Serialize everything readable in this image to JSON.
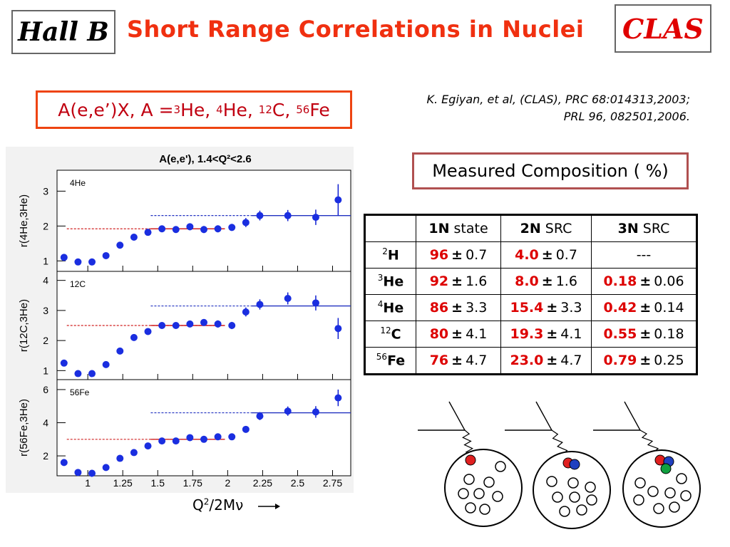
{
  "header": {
    "hall_label": "Hall B",
    "title": "Short Range Correlations in Nuclei",
    "clas_label": "CLAS"
  },
  "reaction": {
    "prefix": "A(e,e’)X, A = ",
    "nuclei": [
      {
        "mass": "3",
        "symbol": "He"
      },
      {
        "mass": "4",
        "symbol": "He"
      },
      {
        "mass": "12",
        "symbol": "C"
      },
      {
        "mass": "56",
        "symbol": "Fe"
      }
    ]
  },
  "references": {
    "line1": "K. Egiyan, et al, (CLAS), PRC 68:014313,2003;",
    "line2": "PRL 96, 082501,2006."
  },
  "composition_title": "Measured Composition ( %)",
  "table": {
    "headers": [
      {
        "bold": "",
        "rest": ""
      },
      {
        "bold": "1N",
        "rest": " state"
      },
      {
        "bold": "2N",
        "rest": " SRC"
      },
      {
        "bold": "3N",
        "rest": " SRC"
      }
    ],
    "rows": [
      {
        "mass": "2",
        "symbol": "H",
        "n1": "96",
        "n1err": "0.7",
        "n2": "4.0",
        "n2err": "0.7",
        "n3": "---",
        "n3err": ""
      },
      {
        "mass": "3",
        "symbol": "He",
        "n1": "92",
        "n1err": "1.6",
        "n2": "8.0",
        "n2err": "1.6",
        "n3": "0.18",
        "n3err": "0.06"
      },
      {
        "mass": "4",
        "symbol": "He",
        "n1": "86",
        "n1err": "3.3",
        "n2": "15.4",
        "n2err": "3.3",
        "n3": "0.42",
        "n3err": "0.14"
      },
      {
        "mass": "12",
        "symbol": "C",
        "n1": "80",
        "n1err": "4.1",
        "n2": "19.3",
        "n2err": "4.1",
        "n3": "0.55",
        "n3err": "0.18"
      },
      {
        "mass": "56",
        "symbol": "Fe",
        "n1": "76",
        "n1err": "4.7",
        "n2": "23.0",
        "n2err": "4.7",
        "n3": "0.79",
        "n3err": "0.25"
      }
    ],
    "pm": "±"
  },
  "xaxis_label": {
    "main": "Q",
    "sup": "2",
    "rest": "/2Mν"
  },
  "chart_data": {
    "type": "scatter",
    "title": "A(e,e'), 1.4<Q²<2.6",
    "x": [
      0.83,
      0.93,
      1.03,
      1.13,
      1.23,
      1.33,
      1.43,
      1.53,
      1.63,
      1.73,
      1.83,
      1.93,
      2.03,
      2.13,
      2.23,
      2.43,
      2.63,
      2.79
    ],
    "xticks": [
      "1",
      "1.25",
      "1.5",
      "1.75",
      "2",
      "2.25",
      "2.5",
      "2.75"
    ],
    "xlim": [
      0.78,
      2.88
    ],
    "panels": [
      {
        "label": "4He",
        "ylabel": "r(4He,3He)",
        "ylim": [
          0.7,
          3.6
        ],
        "yticks": [
          1,
          2,
          3
        ],
        "y": [
          1.1,
          0.97,
          0.97,
          1.15,
          1.45,
          1.68,
          1.82,
          1.92,
          1.9,
          1.98,
          1.9,
          1.92,
          1.96,
          2.1,
          2.3,
          2.3,
          2.25,
          2.75
        ],
        "err": [
          0.03,
          0.04,
          0.05,
          0.06,
          0.06,
          0.07,
          0.08,
          0.09,
          0.09,
          0.1,
          0.1,
          0.1,
          0.1,
          0.13,
          0.14,
          0.16,
          0.22,
          0.45
        ],
        "red_line": {
          "x": [
            0.85,
            1.98
          ],
          "y": 1.92
        },
        "blue_line": {
          "x": [
            1.45,
            2.88
          ],
          "y": 2.3
        }
      },
      {
        "label": "12C",
        "ylabel": "r(12C,3He)",
        "ylim": [
          0.7,
          4.3
        ],
        "yticks": [
          1,
          2,
          3,
          4
        ],
        "y": [
          1.25,
          0.9,
          0.9,
          1.2,
          1.65,
          2.1,
          2.3,
          2.5,
          2.5,
          2.55,
          2.6,
          2.55,
          2.5,
          2.95,
          3.2,
          3.4,
          3.25,
          2.4
        ],
        "err": [
          0.04,
          0.04,
          0.05,
          0.06,
          0.07,
          0.08,
          0.08,
          0.1,
          0.1,
          0.11,
          0.11,
          0.12,
          0.12,
          0.15,
          0.17,
          0.2,
          0.25,
          0.35
        ],
        "red_line": {
          "x": [
            0.85,
            1.98
          ],
          "y": 2.5
        },
        "blue_line": {
          "x": [
            1.45,
            2.88
          ],
          "y": 3.15
        }
      },
      {
        "label": "56Fe",
        "ylabel": "r(56Fe,3He)",
        "ylim": [
          0.8,
          6.6
        ],
        "yticks": [
          2,
          4,
          6
        ],
        "y": [
          1.6,
          1.0,
          0.95,
          1.3,
          1.85,
          2.2,
          2.6,
          2.9,
          2.9,
          3.1,
          3.0,
          3.15,
          3.15,
          3.6,
          4.4,
          4.7,
          4.65,
          5.5
        ],
        "err": [
          0.05,
          0.05,
          0.06,
          0.08,
          0.09,
          0.1,
          0.11,
          0.12,
          0.12,
          0.14,
          0.14,
          0.16,
          0.16,
          0.2,
          0.24,
          0.28,
          0.35,
          0.5
        ],
        "red_line": {
          "x": [
            0.85,
            1.98
          ],
          "y": 3.0
        },
        "blue_line": {
          "x": [
            1.45,
            2.88
          ],
          "y": 4.6
        }
      }
    ]
  }
}
